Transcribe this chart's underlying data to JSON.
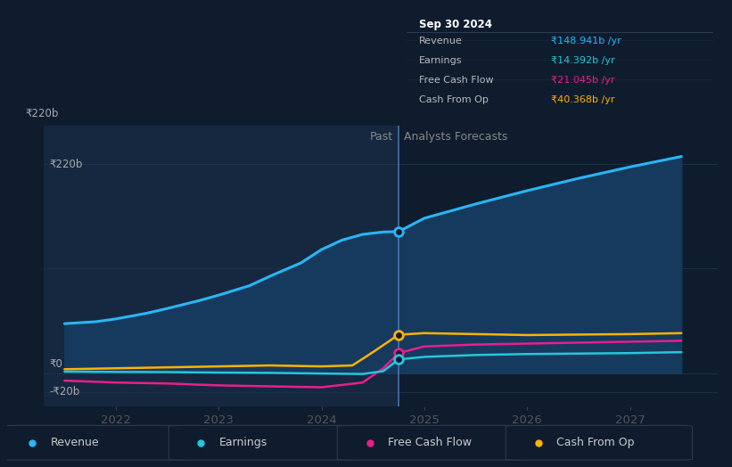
{
  "bg_color": "#0e1c2e",
  "plot_bg_color": "#0e1c2e",
  "divider_x": 2024.75,
  "past_region_color": "#152840",
  "ylim": [
    -35,
    260
  ],
  "xlim": [
    2021.3,
    2027.85
  ],
  "yticks_vals": [
    -20,
    0,
    220
  ],
  "ytick_labels": [
    "-₹20b",
    "₹0",
    "₹220b"
  ],
  "ytick_positions": [
    -20,
    0,
    220
  ],
  "xticks": [
    2022,
    2023,
    2024,
    2025,
    2026,
    2027
  ],
  "grid_color": "#1e3550",
  "divider_color": "#4a7ab5",
  "revenue": {
    "x": [
      2021.5,
      2021.8,
      2022.0,
      2022.3,
      2022.5,
      2022.8,
      2023.0,
      2023.3,
      2023.5,
      2023.8,
      2024.0,
      2024.2,
      2024.4,
      2024.6,
      2024.75,
      2025.0,
      2025.5,
      2026.0,
      2026.5,
      2027.0,
      2027.5
    ],
    "y": [
      52,
      54,
      57,
      63,
      68,
      76,
      82,
      92,
      102,
      116,
      130,
      140,
      146,
      148.5,
      148.941,
      163,
      178,
      192,
      205,
      217,
      228
    ],
    "color": "#29b6f6",
    "fill_color": "#163a5e",
    "label": "Revenue",
    "marker_x": 2024.75,
    "marker_y": 148.941
  },
  "earnings": {
    "x": [
      2021.5,
      2022.0,
      2022.5,
      2023.0,
      2023.5,
      2024.0,
      2024.4,
      2024.6,
      2024.75,
      2025.0,
      2025.5,
      2026.0,
      2026.5,
      2027.0,
      2027.5
    ],
    "y": [
      1.5,
      1.2,
      1.0,
      0.5,
      0.2,
      -0.5,
      -1.0,
      2.0,
      14.392,
      17,
      19,
      20,
      20.5,
      21,
      22
    ],
    "color": "#26c6da",
    "label": "Earnings",
    "marker_x": 2024.75,
    "marker_y": 14.392
  },
  "free_cash_flow": {
    "x": [
      2021.5,
      2022.0,
      2022.5,
      2023.0,
      2023.5,
      2024.0,
      2024.4,
      2024.6,
      2024.75,
      2025.0,
      2025.5,
      2026.0,
      2026.5,
      2027.0,
      2027.5
    ],
    "y": [
      -8,
      -10,
      -11,
      -13,
      -14,
      -15,
      -10,
      5,
      21.045,
      28,
      30,
      31,
      32,
      33,
      34
    ],
    "color": "#e91e8c",
    "label": "Free Cash Flow",
    "marker_x": 2024.75,
    "marker_y": 21.045
  },
  "cash_from_op": {
    "x": [
      2021.5,
      2022.0,
      2022.5,
      2023.0,
      2023.5,
      2024.0,
      2024.3,
      2024.5,
      2024.75,
      2025.0,
      2025.5,
      2026.0,
      2026.5,
      2027.0,
      2027.5
    ],
    "y": [
      4,
      5,
      6,
      7,
      8,
      7,
      8,
      22,
      40.368,
      42,
      41,
      40,
      40.5,
      41,
      42
    ],
    "color": "#ffb300",
    "label": "Cash From Op",
    "marker_x": 2024.75,
    "marker_y": 40.368
  },
  "tooltip": {
    "date": "Sep 30 2024",
    "rows": [
      {
        "label": "Revenue",
        "value": "₹148.941b /yr",
        "color": "#29b6f6"
      },
      {
        "label": "Earnings",
        "value": "₹14.392b /yr",
        "color": "#26c6da"
      },
      {
        "label": "Free Cash Flow",
        "value": "₹21.045b /yr",
        "color": "#e91e8c"
      },
      {
        "label": "Cash From Op",
        "value": "₹40.368b /yr",
        "color": "#ffb300"
      }
    ],
    "text_color": "#bbbbbb",
    "bg": "#050d18",
    "border": "#2a3a50"
  },
  "past_label": "Past",
  "forecast_label": "Analysts Forecasts",
  "label_color": "#888888",
  "legend_items": [
    {
      "label": "Revenue",
      "color": "#29b6f6"
    },
    {
      "label": "Earnings",
      "color": "#26c6da"
    },
    {
      "label": "Free Cash Flow",
      "color": "#e91e8c"
    },
    {
      "label": "Cash From Op",
      "color": "#ffb300"
    }
  ],
  "legend_text_color": "#cccccc",
  "legend_bg": "#0e1c2e",
  "legend_border": "#2a3a50"
}
